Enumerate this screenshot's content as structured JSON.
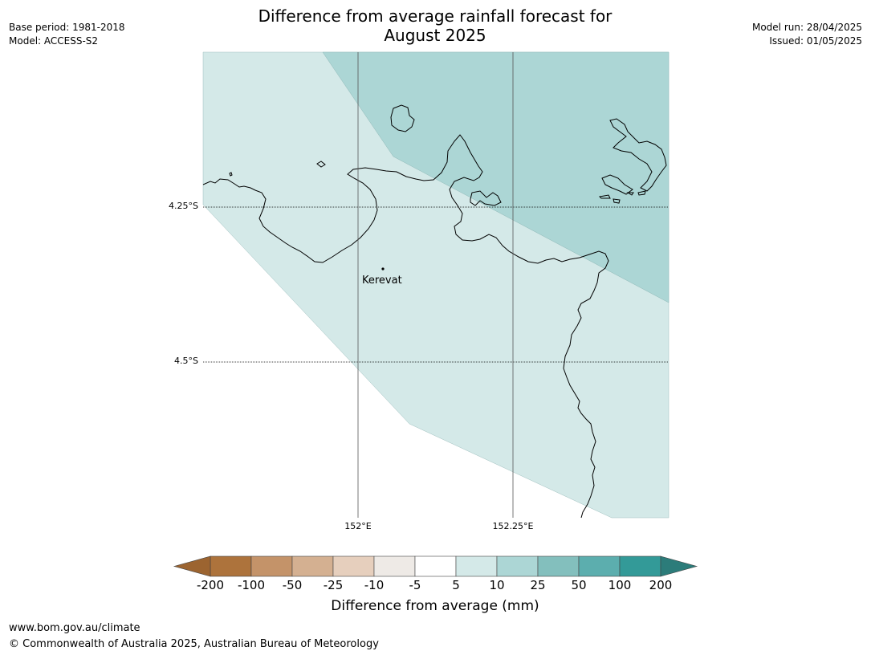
{
  "header": {
    "title_line1": "Difference from average rainfall forecast for",
    "title_line2": "August 2025",
    "base_period": "Base period: 1981-2018",
    "model": "Model: ACCESS-S2",
    "model_run": "Model run: 28/04/2025",
    "issued": "Issued: 01/05/2025"
  },
  "map": {
    "lat_labels": [
      "4.25°S",
      "4.5°S"
    ],
    "lon_labels": [
      "152°E",
      "152.25°E"
    ],
    "place": {
      "name": "Kerevat"
    },
    "colors": {
      "ocean": "#ffffff",
      "band_5_10": "#d4e9e8",
      "band_10_25": "#acd6d5",
      "coast": "#000000",
      "grid": "#555555"
    }
  },
  "colorbar": {
    "tick_labels": [
      "-200",
      "-100",
      "-50",
      "-25",
      "-10",
      "-5",
      "5",
      "10",
      "25",
      "50",
      "100",
      "200"
    ],
    "segment_colors": [
      "#ad733c",
      "#c49369",
      "#d4b091",
      "#e6cfbd",
      "#eeeae6",
      "#ffffff",
      "#d4e9e8",
      "#acd6d5",
      "#83bfbd",
      "#5caeae",
      "#339a98"
    ],
    "low_extend_color": "#9c6430",
    "high_extend_color": "#2c7c7a",
    "label": "Difference from average (mm)"
  },
  "footer": {
    "url": "www.bom.gov.au/climate",
    "copyright": "© Commonwealth of Australia 2025, Australian Bureau of Meteorology"
  }
}
